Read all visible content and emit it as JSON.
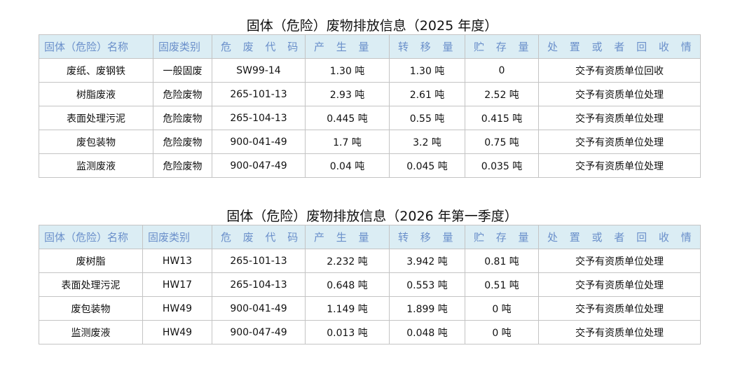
{
  "headers": [
    "固体（危险）名称",
    "固废类别",
    "危 废 代 码",
    "产 生 量",
    "转 移 量",
    "贮 存 量",
    "处 置 或 者 回 收 情 况"
  ],
  "tables": [
    {
      "title": "固体（危险）废物排放信息（2025 年度）",
      "rows": [
        [
          "废纸、废钢铁",
          "一般固废",
          "SW99-14",
          "1.30 吨",
          "1.30 吨",
          "0",
          "交予有资质单位回收"
        ],
        [
          "树脂废液",
          "危险废物",
          "265-101-13",
          "2.93 吨",
          "2.61 吨",
          "2.52 吨",
          "交予有资质单位处理"
        ],
        [
          "表面处理污泥",
          "危险废物",
          "265-104-13",
          "0.445 吨",
          "0.55 吨",
          "0.415 吨",
          "交予有资质单位处理"
        ],
        [
          "废包装物",
          "危险废物",
          "900-041-49",
          "1.7 吨",
          "3.2 吨",
          "0.75 吨",
          "交予有资质单位处理"
        ],
        [
          "监测废液",
          "危险废物",
          "900-047-49",
          "0.04 吨",
          "0.045 吨",
          "0.035 吨",
          "交予有资质单位处理"
        ]
      ]
    },
    {
      "title": "固体（危险）废物排放信息（2026 年第一季度）",
      "rows": [
        [
          "废树脂",
          "HW13",
          "265-101-13",
          "2.232 吨",
          "3.942 吨",
          "0.81 吨",
          "交予有资质单位处理"
        ],
        [
          "表面处理污泥",
          "HW17",
          "265-104-13",
          "0.648 吨",
          "0.553 吨",
          "0.51 吨",
          "交予有资质单位处理"
        ],
        [
          "废包装物",
          "HW49",
          "900-041-49",
          "1.149 吨",
          "1.899 吨",
          "0 吨",
          "交予有资质单位处理"
        ],
        [
          "监测废液",
          "HW49",
          "900-047-49",
          "0.013 吨",
          "0.048 吨",
          "0 吨",
          "交予有资质单位处理"
        ]
      ]
    }
  ],
  "colors": {
    "header_bg": "#dbedf4",
    "header_text": "#6a8fca",
    "border": "#c4c4c4"
  }
}
